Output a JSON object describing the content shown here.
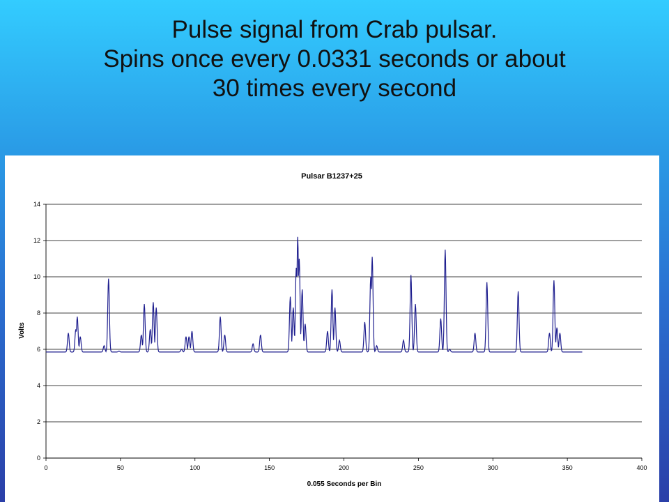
{
  "slide": {
    "title_lines": [
      "Pulse signal from Crab pulsar.",
      "Spins once every 0.0331 seconds or about",
      "30 times every second"
    ]
  },
  "colors": {
    "line": "#1f1f8f",
    "grid": "#000000"
  },
  "chart_data": {
    "type": "line",
    "title": "Pulsar B1237+25",
    "xlabel": "0.055 Seconds per Bin",
    "ylabel": "Volts",
    "xlim": [
      0,
      400
    ],
    "ylim": [
      0,
      14
    ],
    "xticks": [
      0,
      50,
      100,
      150,
      200,
      250,
      300,
      350,
      400
    ],
    "yticks": [
      0,
      2,
      4,
      6,
      8,
      10,
      12,
      14
    ],
    "grid": "horizontal",
    "legend": "none",
    "baseline": 5.85,
    "x_end": 360,
    "peaks": [
      [
        15,
        6.9
      ],
      [
        20,
        7.1
      ],
      [
        21,
        7.8
      ],
      [
        23,
        6.7
      ],
      [
        39,
        6.2
      ],
      [
        42,
        9.9
      ],
      [
        49,
        5.9
      ],
      [
        64,
        6.8
      ],
      [
        66,
        8.5
      ],
      [
        70,
        7.1
      ],
      [
        72,
        8.6
      ],
      [
        74,
        8.3
      ],
      [
        91,
        6.0
      ],
      [
        94,
        6.7
      ],
      [
        96,
        6.7
      ],
      [
        98,
        7.0
      ],
      [
        117,
        7.8
      ],
      [
        120,
        6.8
      ],
      [
        139,
        6.3
      ],
      [
        144,
        6.8
      ],
      [
        164,
        8.9
      ],
      [
        166,
        8.3
      ],
      [
        168,
        10.5
      ],
      [
        169,
        12.2
      ],
      [
        170,
        11.0
      ],
      [
        172,
        9.3
      ],
      [
        174,
        7.4
      ],
      [
        189,
        7.0
      ],
      [
        192,
        9.3
      ],
      [
        194,
        8.3
      ],
      [
        197,
        6.5
      ],
      [
        214,
        7.5
      ],
      [
        218,
        10.0
      ],
      [
        219,
        11.1
      ],
      [
        222,
        6.2
      ],
      [
        240,
        6.5
      ],
      [
        245,
        10.1
      ],
      [
        248,
        8.5
      ],
      [
        265,
        7.7
      ],
      [
        268,
        11.5
      ],
      [
        271,
        6.0
      ],
      [
        288,
        6.9
      ],
      [
        296,
        9.7
      ],
      [
        317,
        9.2
      ],
      [
        338,
        6.9
      ],
      [
        341,
        9.8
      ],
      [
        343,
        7.2
      ],
      [
        345,
        6.9
      ]
    ]
  }
}
